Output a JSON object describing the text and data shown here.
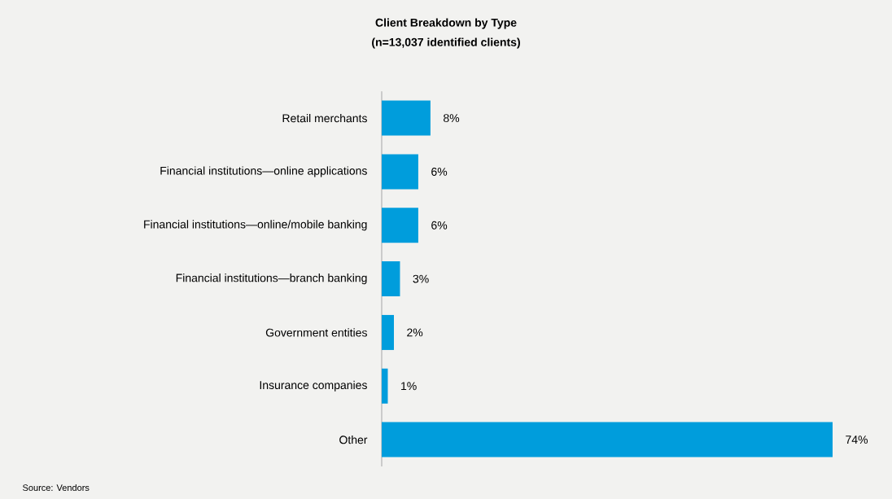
{
  "chart_data": {
    "type": "bar",
    "orientation": "horizontal",
    "title": "Client Breakdown by Type",
    "subtitle": "(n=13,037 identified clients)",
    "categories": [
      "Retail merchants",
      "Financial institutions—online applications",
      "Financial institutions—online/mobile banking",
      "Financial institutions—branch banking",
      "Government entities",
      "Insurance companies",
      "Other"
    ],
    "values": [
      8,
      6,
      6,
      3,
      2,
      1,
      74
    ],
    "value_labels": [
      "8%",
      "6%",
      "6%",
      "3%",
      "2%",
      "1%",
      "74%"
    ],
    "color": "#009ddc",
    "annotations": [
      "Source: Vendors"
    ]
  }
}
